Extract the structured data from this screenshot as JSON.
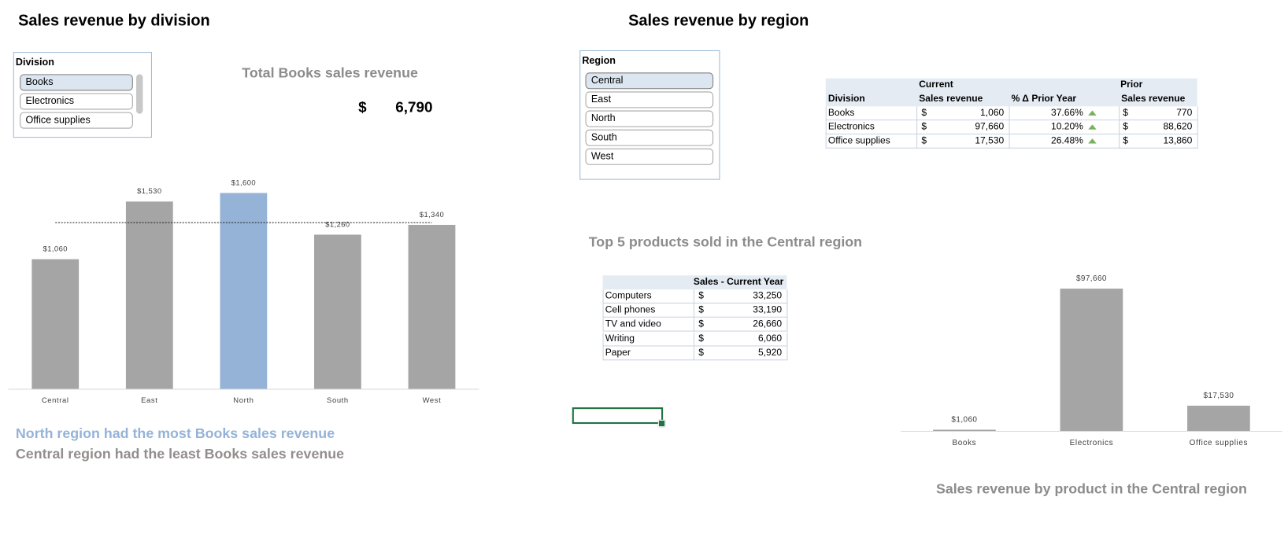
{
  "division_section": {
    "title": "Sales revenue by division",
    "slicer": {
      "title": "Division",
      "items": [
        "Books",
        "Electronics",
        "Office supplies"
      ],
      "selected": 0
    },
    "total": {
      "label": "Total Books sales revenue",
      "currency": "$",
      "value": "6,790"
    },
    "notes": [
      "North region had the most Books sales revenue",
      "Central region had the least Books sales revenue"
    ]
  },
  "region_section": {
    "title": "Sales revenue by region",
    "slicer": {
      "title": "Region",
      "items": [
        "Central",
        "East",
        "North",
        "South",
        "West"
      ],
      "selected": 0
    },
    "comparison_table": {
      "group_labels": {
        "current": "Current",
        "prior": "Prior"
      },
      "columns": [
        "Division",
        "Sales revenue",
        "% Δ Prior Year",
        "Sales revenue"
      ],
      "rows": [
        [
          "Books",
          "$",
          "1,060",
          "37.66%",
          "$",
          "770"
        ],
        [
          "Electronics",
          "$",
          "97,660",
          "10.20%",
          "$",
          "88,620"
        ],
        [
          "Office supplies",
          "$",
          "17,530",
          "26.48%",
          "$",
          "13,860"
        ]
      ]
    },
    "top_products": {
      "title": "Top 5 products sold in the Central region",
      "column": "Sales - Current Year",
      "rows": [
        [
          "Computers",
          "$",
          "33,250"
        ],
        [
          "Cell phones",
          "$",
          "33,190"
        ],
        [
          "TV and video",
          "$",
          "26,660"
        ],
        [
          "Writing",
          "$",
          "6,060"
        ],
        [
          "Paper",
          "$",
          "5,920"
        ]
      ]
    }
  },
  "chart_data": [
    {
      "type": "bar",
      "categories": [
        "Central",
        "East",
        "North",
        "South",
        "West"
      ],
      "values": [
        1060,
        1530,
        1600,
        1260,
        1340
      ],
      "value_labels": [
        "$1,060",
        "$1,530",
        "$1,600",
        "$1,260",
        "$1,340"
      ],
      "colors": [
        "#a5a5a5",
        "#a5a5a5",
        "#95b3d7",
        "#a5a5a5",
        "#a5a5a5"
      ],
      "average_line": true
    },
    {
      "type": "bar",
      "title": "Sales revenue by product in the Central region",
      "categories": [
        "Books",
        "Electronics",
        "Office supplies"
      ],
      "values": [
        1060,
        97660,
        17530
      ],
      "value_labels": [
        "$1,060",
        "$97,660",
        "$17,530"
      ],
      "colors": [
        "#a5a5a5",
        "#a5a5a5",
        "#a5a5a5"
      ],
      "average_line": false
    }
  ]
}
